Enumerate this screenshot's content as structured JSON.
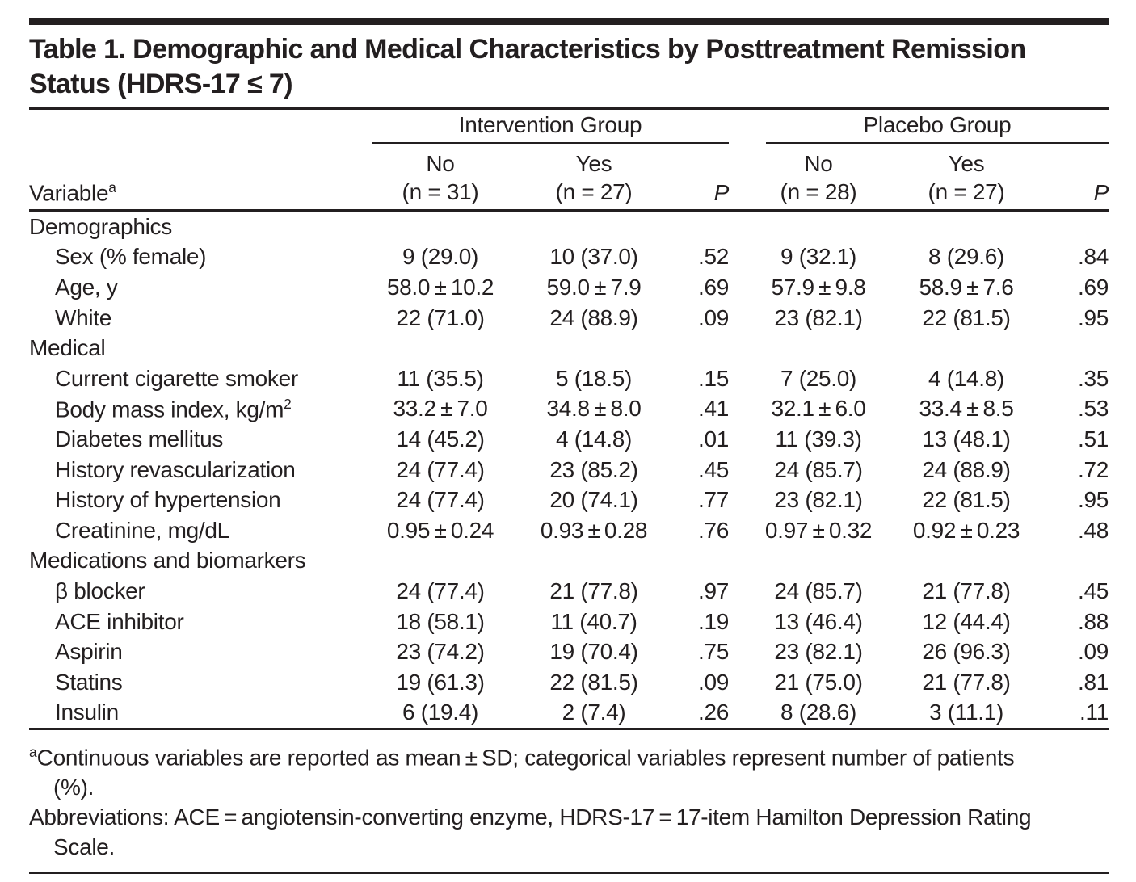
{
  "page": {
    "title_lines": [
      "Table 1. Demographic and Medical Characteristics by Posttreatment Remission",
      "Status (HDRS-17 ≤ 7)"
    ]
  },
  "table": {
    "variable_header": {
      "label": "Variable",
      "sup": "a"
    },
    "groups": [
      {
        "label": "Intervention Group",
        "columns": [
          {
            "status": "No",
            "n": "(n = 31)"
          },
          {
            "status": "Yes",
            "n": "(n = 27)"
          }
        ],
        "p_label": "P"
      },
      {
        "label": "Placebo Group",
        "columns": [
          {
            "status": "No",
            "n": "(n = 28)"
          },
          {
            "status": "Yes",
            "n": "(n = 27)"
          }
        ],
        "p_label": "P"
      }
    ],
    "rows": [
      {
        "type": "section",
        "label": "Demographics"
      },
      {
        "type": "data",
        "label": "Sex (% female)",
        "values": [
          "9 (29.0)",
          "10 (37.0)",
          ".52",
          "9 (32.1)",
          "8 (29.6)",
          ".84"
        ]
      },
      {
        "type": "data",
        "label": "Age, y",
        "values": [
          "58.0 ± 10.2",
          "59.0 ± 7.9",
          ".69",
          "57.9 ± 9.8",
          "58.9 ± 7.6",
          ".69"
        ]
      },
      {
        "type": "data",
        "label": "White",
        "values": [
          "22 (71.0)",
          "24 (88.9)",
          ".09",
          "23 (82.1)",
          "22 (81.5)",
          ".95"
        ]
      },
      {
        "type": "section",
        "label": "Medical"
      },
      {
        "type": "data",
        "label": "Current cigarette smoker",
        "values": [
          "11 (35.5)",
          "5 (18.5)",
          ".15",
          "7 (25.0)",
          "4 (14.8)",
          ".35"
        ]
      },
      {
        "type": "data",
        "label": "Body mass index, kg/m",
        "label_sup": "2",
        "values": [
          "33.2 ± 7.0",
          "34.8 ± 8.0",
          ".41",
          "32.1 ± 6.0",
          "33.4 ± 8.5",
          ".53"
        ]
      },
      {
        "type": "data",
        "label": "Diabetes mellitus",
        "values": [
          "14 (45.2)",
          "4 (14.8)",
          ".01",
          "11 (39.3)",
          "13 (48.1)",
          ".51"
        ]
      },
      {
        "type": "data",
        "label": "History revascularization",
        "values": [
          "24 (77.4)",
          "23 (85.2)",
          ".45",
          "24 (85.7)",
          "24 (88.9)",
          ".72"
        ]
      },
      {
        "type": "data",
        "label": "History of hypertension",
        "values": [
          "24 (77.4)",
          "20 (74.1)",
          ".77",
          "23 (82.1)",
          "22 (81.5)",
          ".95"
        ]
      },
      {
        "type": "data",
        "label": "Creatinine, mg/dL",
        "values": [
          "0.95 ± 0.24",
          "0.93 ± 0.28",
          ".76",
          "0.97 ± 0.32",
          "0.92 ± 0.23",
          ".48"
        ]
      },
      {
        "type": "section",
        "label": "Medications and biomarkers"
      },
      {
        "type": "data",
        "label": "β blocker",
        "values": [
          "24 (77.4)",
          "21 (77.8)",
          ".97",
          "24 (85.7)",
          "21 (77.8)",
          ".45"
        ]
      },
      {
        "type": "data",
        "label": "ACE inhibitor",
        "values": [
          "18 (58.1)",
          "11 (40.7)",
          ".19",
          "13 (46.4)",
          "12 (44.4)",
          ".88"
        ]
      },
      {
        "type": "data",
        "label": "Aspirin",
        "values": [
          "23 (74.2)",
          "19 (70.4)",
          ".75",
          "23 (82.1)",
          "26 (96.3)",
          ".09"
        ]
      },
      {
        "type": "data",
        "label": "Statins",
        "values": [
          "19 (61.3)",
          "22 (81.5)",
          ".09",
          "21 (75.0)",
          "21 (77.8)",
          ".81"
        ]
      },
      {
        "type": "data",
        "label": "Insulin",
        "values": [
          "6 (19.4)",
          "2 (7.4)",
          ".26",
          "8 (28.6)",
          "3 (11.1)",
          ".11"
        ]
      }
    ]
  },
  "footnotes": [
    {
      "sup": "a",
      "lines": [
        "Continuous variables are reported as mean ± SD; categorical variables represent number of patients",
        "(%)."
      ]
    },
    {
      "sup": "",
      "lines": [
        "Abbreviations: ACE = angiotensin-converting enzyme, HDRS-17 = 17-item Hamilton Depression Rating",
        "Scale."
      ]
    }
  ],
  "colors": {
    "ink": "#231f20",
    "background": "#ffffff"
  }
}
